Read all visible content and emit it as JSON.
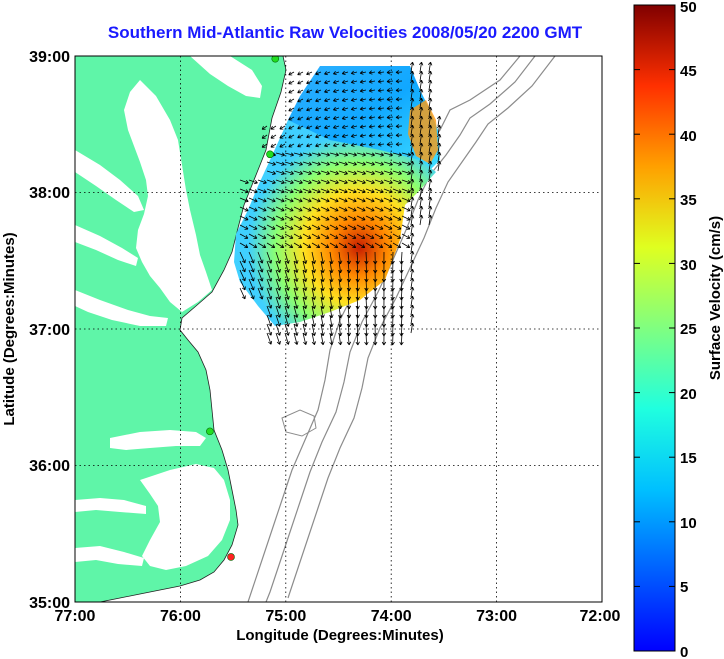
{
  "title": "Southern Mid-Atlantic Raw Velocities 2008/05/20 2200 GMT",
  "x_axis": {
    "label": "Longitude (Degrees:Minutes)",
    "ticks": [
      "77:00",
      "76:00",
      "75:00",
      "74:00",
      "73:00",
      "72:00"
    ]
  },
  "y_axis": {
    "label": "Latitude (Degrees:Minutes)",
    "ticks": [
      "39:00",
      "38:00",
      "37:00",
      "36:00",
      "35:00"
    ]
  },
  "colorbar": {
    "label": "Surface Velocity (cm/s)",
    "ticks": [
      "0",
      "5",
      "10",
      "15",
      "20",
      "25",
      "30",
      "35",
      "40",
      "45",
      "50"
    ],
    "range": [
      0,
      50
    ],
    "colormap": "jet"
  },
  "map_data": {
    "lon_range": [
      -77,
      -72
    ],
    "lat_range": [
      35,
      39
    ],
    "land_color": "#5ff5a8",
    "station_markers": [
      {
        "lon": -75.1,
        "lat": 38.98,
        "color": "#22dd22"
      },
      {
        "lon": -75.15,
        "lat": 38.28,
        "color": "#22dd22"
      },
      {
        "lon": -75.72,
        "lat": 36.25,
        "color": "#22dd22"
      },
      {
        "lon": -75.52,
        "lat": 35.33,
        "color": "#ff2222"
      }
    ]
  }
}
